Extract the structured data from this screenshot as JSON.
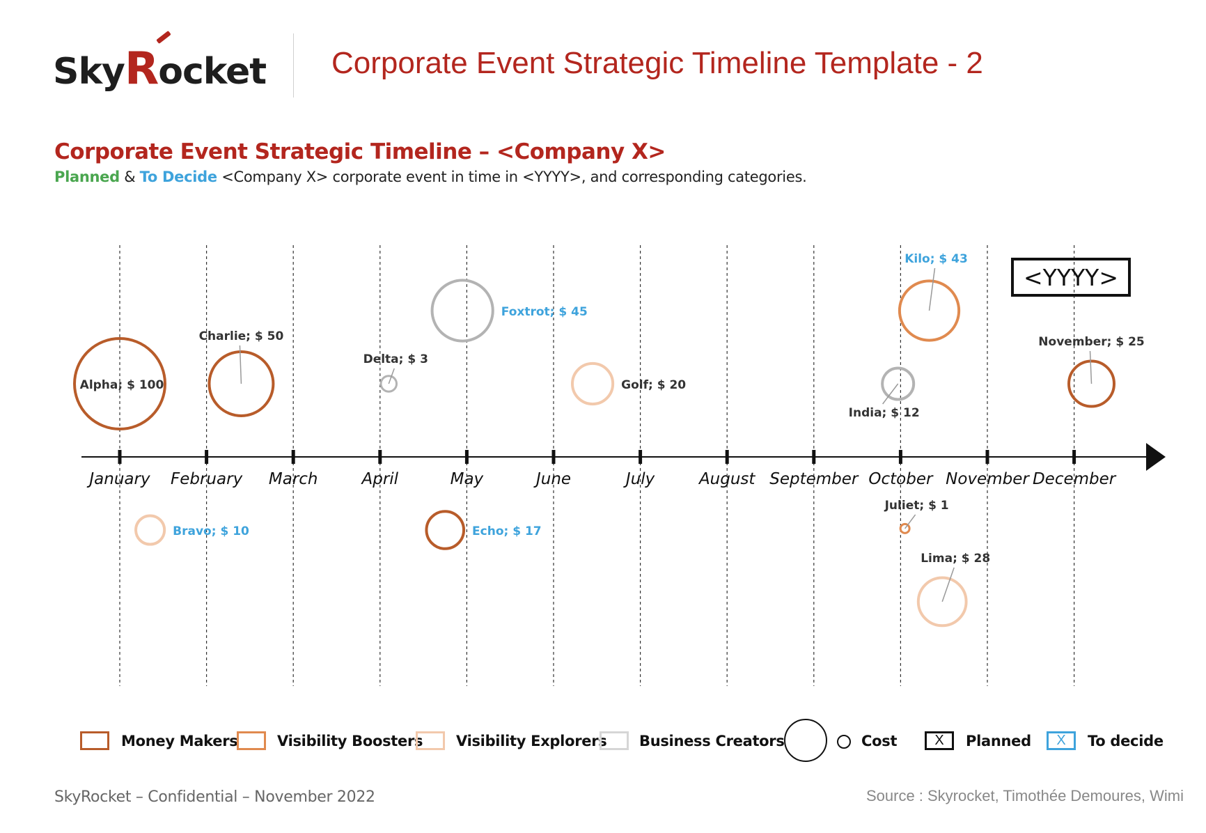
{
  "header": {
    "logo_text_a": "Sky",
    "logo_text_b": "R",
    "logo_text_c": "ocket",
    "title": "Corporate Event Strategic Timeline Template - 2"
  },
  "section": {
    "title": "Corporate Event Strategic Timeline – <Company X>",
    "subtitle_planned": "Planned",
    "subtitle_amp": " & ",
    "subtitle_todecide": "To Decide",
    "subtitle_rest": " <Company X> corporate event in time in <YYYY>, and corresponding categories."
  },
  "year_label": "<YYYY>",
  "chart_data": {
    "type": "scatter",
    "subtype": "bubble-timeline",
    "x_axis": {
      "categories": [
        "January",
        "February",
        "March",
        "April",
        "May",
        "June",
        "July",
        "August",
        "September",
        "October",
        "November",
        "December"
      ]
    },
    "size_measure": "Cost",
    "categories_legend": [
      "Money Makers",
      "Visibility Boosters",
      "Visibility Explorers",
      "Business Creators"
    ],
    "status_legend": [
      "Planned",
      "To decide"
    ],
    "colors": {
      "Money Makers": "#b85c2a",
      "Visibility Boosters": "#e08a4f",
      "Visibility Explorers": "#f2c9ac",
      "Business Creators": "#b3b3b3",
      "Planned": "#333333",
      "To decide": "#3ea3dc"
    },
    "events": [
      {
        "name": "Alpha",
        "cost": 100,
        "label": "Alpha;  $ 100",
        "month": 0.0,
        "lane": -1.0,
        "category": "Money Makers",
        "status": "Planned"
      },
      {
        "name": "Charlie",
        "cost": 50,
        "label": "Charlie;  $ 50",
        "month": 1.4,
        "lane": -1.0,
        "category": "Money Makers",
        "status": "Planned"
      },
      {
        "name": "Delta",
        "cost": 3,
        "label": "Delta;  $ 3",
        "month": 3.1,
        "lane": -1.0,
        "category": "Business Creators",
        "status": "Planned"
      },
      {
        "name": "Foxtrot",
        "cost": 45,
        "label": "Foxtrot;  $ 45",
        "month": 3.95,
        "lane": -2.0,
        "category": "Business Creators",
        "status": "To decide"
      },
      {
        "name": "Golf",
        "cost": 20,
        "label": "Golf;  $ 20",
        "month": 5.45,
        "lane": -1.0,
        "category": "Visibility Explorers",
        "status": "Planned"
      },
      {
        "name": "India",
        "cost": 12,
        "label": "India;  $ 12",
        "month": 8.97,
        "lane": -1.0,
        "category": "Business Creators",
        "status": "Planned"
      },
      {
        "name": "Kilo",
        "cost": 43,
        "label": "Kilo;  $ 43",
        "month": 9.33,
        "lane": -2.0,
        "category": "Visibility Boosters",
        "status": "To decide"
      },
      {
        "name": "November",
        "cost": 25,
        "label": "November;  $ 25",
        "month": 11.2,
        "lane": -1.0,
        "category": "Money Makers",
        "status": "Planned"
      },
      {
        "name": "Bravo",
        "cost": 10,
        "label": "Bravo;  $ 10",
        "month": 0.35,
        "lane": 1.0,
        "category": "Visibility Explorers",
        "status": "To decide"
      },
      {
        "name": "Echo",
        "cost": 17,
        "label": "Echo;  $ 17",
        "month": 3.75,
        "lane": 1.0,
        "category": "Money Makers",
        "status": "To decide"
      },
      {
        "name": "Juliet",
        "cost": 1,
        "label": "Juliet;  $ 1",
        "month": 9.05,
        "lane": 0.98,
        "category": "Visibility Boosters",
        "status": "Planned"
      },
      {
        "name": "Lima",
        "cost": 28,
        "label": "Lima;  $ 28",
        "month": 9.48,
        "lane": 1.98,
        "category": "Visibility Explorers",
        "status": "Planned"
      }
    ]
  },
  "legend": {
    "money_makers": "Money Makers",
    "visibility_boosters": "Visibility Boosters",
    "visibility_explorers": "Visibility Explorers",
    "business_creators": "Business Creators",
    "cost": "Cost",
    "planned_mark": "X",
    "planned": "Planned",
    "todecide_mark": "X",
    "todecide": "To decide"
  },
  "footer": {
    "left": "SkyRocket – Confidential – November 2022",
    "right": "Source : Skyrocket, Timothée Demoures, Wimi"
  }
}
